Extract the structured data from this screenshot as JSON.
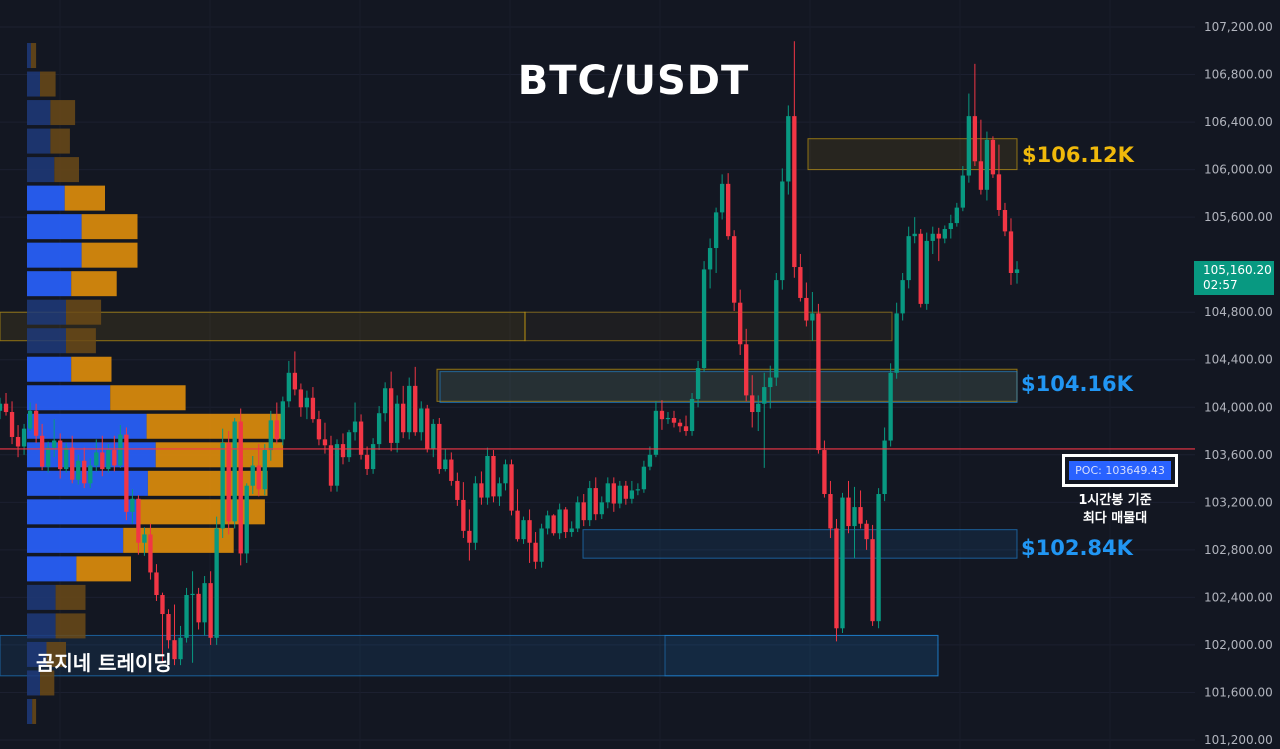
{
  "title": "BTC/USDT",
  "chart_data": {
    "type": "candlestick",
    "symbol": "BTC/USDT",
    "y_axis": {
      "min": 101200,
      "max": 107200,
      "ticks": [
        "107,200.00",
        "106,800.00",
        "106,400.00",
        "106,000.00",
        "105,600.00",
        "104,800.00",
        "104,400.00",
        "104,000.00",
        "103,600.00",
        "103,200.00",
        "102,800.00",
        "102,400.00",
        "102,000.00",
        "101,600.00",
        "101,200.00"
      ],
      "tick_values": [
        107200,
        106800,
        106400,
        106000,
        105600,
        104800,
        104400,
        104000,
        103600,
        103200,
        102800,
        102400,
        102000,
        101600,
        101200
      ]
    },
    "current_price": {
      "label": "105,160.20",
      "countdown": "02:57",
      "value": 105160.2,
      "color": "#089981"
    },
    "poc": {
      "label": "POC: 103649.43",
      "value": 103649.43,
      "line_color": "#f23645"
    },
    "poc_note": {
      "line1": "1시간봉 기준",
      "line2": "최다 매물대"
    },
    "levels": [
      {
        "label": "$106.12K",
        "value": 106120,
        "color": "#f0b90b"
      },
      {
        "label": "$104.16K",
        "value": 104160,
        "color": "#2196f3"
      },
      {
        "label": "$102.84K",
        "value": 102840,
        "color": "#2196f3"
      }
    ],
    "zones": [
      {
        "type": "supply",
        "from": 106000,
        "to": 106260,
        "color": "#f0b90b"
      },
      {
        "type": "supply",
        "from": 104560,
        "to": 104800,
        "color": "#f0b90b"
      },
      {
        "type": "supply",
        "from": 104050,
        "to": 104320,
        "color": "#f0b90b"
      },
      {
        "type": "demand",
        "from": 104040,
        "to": 104300,
        "color": "#2196f3"
      },
      {
        "type": "demand",
        "from": 102730,
        "to": 102970,
        "color": "#2196f3"
      },
      {
        "type": "demand",
        "from": 101740,
        "to": 102080,
        "color": "#2196f3"
      }
    ],
    "volume_profile": {
      "bins": [
        {
          "price": 106960,
          "buy": 3,
          "sell": 4
        },
        {
          "price": 106720,
          "buy": 10,
          "sell": 12
        },
        {
          "price": 106480,
          "buy": 18,
          "sell": 19
        },
        {
          "price": 106240,
          "buy": 18,
          "sell": 15
        },
        {
          "price": 106000,
          "buy": 21,
          "sell": 19
        },
        {
          "price": 105760,
          "buy": 29,
          "sell": 31
        },
        {
          "price": 105520,
          "buy": 42,
          "sell": 43
        },
        {
          "price": 105280,
          "buy": 42,
          "sell": 43
        },
        {
          "price": 105040,
          "buy": 34,
          "sell": 35
        },
        {
          "price": 104800,
          "buy": 30,
          "sell": 27
        },
        {
          "price": 104560,
          "buy": 30,
          "sell": 23
        },
        {
          "price": 104320,
          "buy": 34,
          "sell": 31
        },
        {
          "price": 104080,
          "buy": 64,
          "sell": 58
        },
        {
          "price": 103840,
          "buy": 92,
          "sell": 105
        },
        {
          "price": 103600,
          "buy": 99,
          "sell": 98
        },
        {
          "price": 103360,
          "buy": 93,
          "sell": 92
        },
        {
          "price": 103120,
          "buy": 86,
          "sell": 97
        },
        {
          "price": 102880,
          "buy": 74,
          "sell": 85
        },
        {
          "price": 102640,
          "buy": 38,
          "sell": 42
        },
        {
          "price": 102400,
          "buy": 22,
          "sell": 23
        },
        {
          "price": 102160,
          "buy": 22,
          "sell": 23
        },
        {
          "price": 101920,
          "buy": 15,
          "sell": 15
        },
        {
          "price": 101680,
          "buy": 10,
          "sell": 11
        },
        {
          "price": 101440,
          "buy": 4,
          "sell": 3
        }
      ]
    },
    "candles": [
      [
        103970,
        104080,
        103900,
        104030
      ],
      [
        104030,
        104120,
        103930,
        103960
      ],
      [
        103960,
        104050,
        103690,
        103750
      ],
      [
        103750,
        103850,
        103580,
        103670
      ],
      [
        103670,
        103860,
        103600,
        103820
      ],
      [
        103820,
        104040,
        103800,
        103970
      ],
      [
        103970,
        104030,
        103700,
        103760
      ],
      [
        103760,
        103860,
        103470,
        103500
      ],
      [
        103500,
        103710,
        103450,
        103660
      ],
      [
        103660,
        103900,
        103580,
        103720
      ],
      [
        103720,
        103780,
        103400,
        103480
      ],
      [
        103480,
        103700,
        103450,
        103660
      ],
      [
        103660,
        103760,
        103360,
        103390
      ],
      [
        103390,
        103600,
        103350,
        103550
      ],
      [
        103550,
        103660,
        103320,
        103360
      ],
      [
        103360,
        103570,
        103320,
        103510
      ],
      [
        103510,
        103730,
        103460,
        103620
      ],
      [
        103620,
        103760,
        103420,
        103480
      ],
      [
        103480,
        103690,
        103450,
        103640
      ],
      [
        103640,
        103760,
        103460,
        103510
      ],
      [
        103510,
        103850,
        103490,
        103770
      ],
      [
        103770,
        103830,
        103050,
        103120
      ],
      [
        103120,
        103310,
        103020,
        103230
      ],
      [
        103230,
        103260,
        102760,
        102860
      ],
      [
        102860,
        102990,
        102750,
        102930
      ],
      [
        102930,
        103020,
        102550,
        102610
      ],
      [
        102610,
        102680,
        102370,
        102420
      ],
      [
        102420,
        102440,
        101860,
        102260
      ],
      [
        102260,
        102300,
        101970,
        102040
      ],
      [
        102040,
        102340,
        101830,
        101880
      ],
      [
        101880,
        102160,
        101830,
        102060
      ],
      [
        102060,
        102480,
        102020,
        102420
      ],
      [
        102420,
        102620,
        101850,
        102430
      ],
      [
        102430,
        102480,
        102130,
        102190
      ],
      [
        102190,
        102580,
        102080,
        102520
      ],
      [
        102520,
        102620,
        102000,
        102060
      ],
      [
        102060,
        103080,
        102000,
        102980
      ],
      [
        102980,
        103820,
        102900,
        103700
      ],
      [
        103700,
        103800,
        102930,
        103040
      ],
      [
        103040,
        103910,
        102980,
        103880
      ],
      [
        103880,
        103990,
        102670,
        102770
      ],
      [
        102770,
        103360,
        102690,
        103340
      ],
      [
        103340,
        103590,
        103270,
        103510
      ],
      [
        103510,
        103690,
        103250,
        103310
      ],
      [
        103310,
        103690,
        103260,
        103640
      ],
      [
        103640,
        103970,
        103550,
        103890
      ],
      [
        103890,
        104040,
        103690,
        103730
      ],
      [
        103730,
        104090,
        103680,
        104050
      ],
      [
        104050,
        104390,
        104000,
        104290
      ],
      [
        104290,
        104470,
        104100,
        104150
      ],
      [
        104150,
        104200,
        103920,
        104000
      ],
      [
        104000,
        104140,
        103900,
        104080
      ],
      [
        104080,
        104170,
        103870,
        103900
      ],
      [
        103900,
        103970,
        103680,
        103730
      ],
      [
        103730,
        103870,
        103610,
        103680
      ],
      [
        103680,
        103760,
        103290,
        103340
      ],
      [
        103340,
        103730,
        103290,
        103690
      ],
      [
        103690,
        103780,
        103520,
        103580
      ],
      [
        103580,
        103810,
        103540,
        103790
      ],
      [
        103790,
        104040,
        103720,
        103880
      ],
      [
        103880,
        103940,
        103560,
        103600
      ],
      [
        103600,
        103670,
        103430,
        103480
      ],
      [
        103480,
        103740,
        103440,
        103690
      ],
      [
        103690,
        104010,
        103640,
        103950
      ],
      [
        103950,
        104210,
        103880,
        104160
      ],
      [
        104160,
        104300,
        103630,
        103700
      ],
      [
        103700,
        104100,
        103620,
        104030
      ],
      [
        104030,
        104180,
        103740,
        103790
      ],
      [
        103790,
        104250,
        103730,
        104180
      ],
      [
        104180,
        104340,
        103760,
        103790
      ],
      [
        103790,
        104050,
        103720,
        103990
      ],
      [
        103990,
        104020,
        103620,
        103650
      ],
      [
        103650,
        103900,
        103580,
        103860
      ],
      [
        103860,
        103910,
        103440,
        103480
      ],
      [
        103480,
        103650,
        103460,
        103560
      ],
      [
        103560,
        103620,
        103340,
        103380
      ],
      [
        103380,
        103450,
        103170,
        103220
      ],
      [
        103220,
        103370,
        102900,
        102960
      ],
      [
        102960,
        103140,
        102710,
        102860
      ],
      [
        102860,
        103420,
        102800,
        103360
      ],
      [
        103360,
        103460,
        103180,
        103240
      ],
      [
        103240,
        103660,
        103180,
        103590
      ],
      [
        103590,
        103640,
        103200,
        103250
      ],
      [
        103250,
        103410,
        103170,
        103360
      ],
      [
        103360,
        103560,
        103300,
        103520
      ],
      [
        103520,
        103560,
        103090,
        103130
      ],
      [
        103130,
        103310,
        102870,
        102890
      ],
      [
        102890,
        103080,
        102850,
        103050
      ],
      [
        103050,
        103140,
        102690,
        102860
      ],
      [
        102860,
        102950,
        102640,
        102700
      ],
      [
        102700,
        103020,
        102650,
        102980
      ],
      [
        102980,
        103130,
        102930,
        103090
      ],
      [
        103090,
        103100,
        102920,
        102940
      ],
      [
        102940,
        103190,
        102890,
        103140
      ],
      [
        103140,
        103160,
        102900,
        102950
      ],
      [
        102950,
        103040,
        102910,
        102980
      ],
      [
        102980,
        103250,
        102950,
        103200
      ],
      [
        103200,
        103270,
        103000,
        103050
      ],
      [
        103050,
        103380,
        103000,
        103320
      ],
      [
        103320,
        103410,
        103050,
        103100
      ],
      [
        103100,
        103250,
        103060,
        103200
      ],
      [
        103200,
        103410,
        103150,
        103360
      ],
      [
        103360,
        103410,
        103120,
        103190
      ],
      [
        103190,
        103380,
        103150,
        103340
      ],
      [
        103340,
        103380,
        103180,
        103230
      ],
      [
        103230,
        103380,
        103190,
        103300
      ],
      [
        103300,
        103360,
        103260,
        103310
      ],
      [
        103310,
        103550,
        103280,
        103500
      ],
      [
        103500,
        103670,
        103470,
        103600
      ],
      [
        103600,
        104050,
        103580,
        103970
      ],
      [
        103970,
        104060,
        103810,
        103900
      ],
      [
        103900,
        103960,
        103860,
        103910
      ],
      [
        103910,
        103970,
        103830,
        103870
      ],
      [
        103870,
        103900,
        103790,
        103840
      ],
      [
        103840,
        103930,
        103760,
        103800
      ],
      [
        103800,
        104120,
        103760,
        104070
      ],
      [
        104070,
        104390,
        104000,
        104330
      ],
      [
        104330,
        105230,
        104300,
        105160
      ],
      [
        105160,
        105420,
        105000,
        105340
      ],
      [
        105340,
        105680,
        105130,
        105640
      ],
      [
        105640,
        105960,
        105580,
        105880
      ],
      [
        105880,
        105970,
        105410,
        105440
      ],
      [
        105440,
        105490,
        104810,
        104880
      ],
      [
        104880,
        104990,
        104440,
        104530
      ],
      [
        104530,
        104660,
        104050,
        104100
      ],
      [
        104100,
        104270,
        103830,
        103960
      ],
      [
        103960,
        104100,
        103800,
        104030
      ],
      [
        104030,
        104290,
        103490,
        104170
      ],
      [
        104170,
        104350,
        103990,
        104250
      ],
      [
        104250,
        105130,
        104180,
        105070
      ],
      [
        105070,
        106010,
        104990,
        105900
      ],
      [
        105900,
        106540,
        105790,
        106450
      ],
      [
        106450,
        107080,
        105090,
        105180
      ],
      [
        105180,
        105290,
        104890,
        104920
      ],
      [
        104920,
        105050,
        104680,
        104730
      ],
      [
        104730,
        104970,
        104560,
        104790
      ],
      [
        104790,
        104870,
        103610,
        103640
      ],
      [
        103640,
        103720,
        103240,
        103270
      ],
      [
        103270,
        103380,
        102900,
        102980
      ],
      [
        102980,
        103060,
        102030,
        102140
      ],
      [
        102140,
        103280,
        102100,
        103240
      ],
      [
        103240,
        103380,
        102940,
        103000
      ],
      [
        103000,
        103330,
        102730,
        103160
      ],
      [
        103160,
        103300,
        102980,
        103020
      ],
      [
        103020,
        103050,
        102800,
        102890
      ],
      [
        102890,
        103010,
        102160,
        102200
      ],
      [
        102200,
        103320,
        102140,
        103270
      ],
      [
        103270,
        103830,
        103210,
        103720
      ],
      [
        103720,
        104370,
        103670,
        104290
      ],
      [
        104290,
        104880,
        104240,
        104790
      ],
      [
        104790,
        105130,
        104730,
        105070
      ],
      [
        105070,
        105520,
        105000,
        105440
      ],
      [
        105440,
        105600,
        105380,
        105460
      ],
      [
        105460,
        105500,
        104840,
        104870
      ],
      [
        104870,
        105470,
        104820,
        105400
      ],
      [
        105400,
        105520,
        105290,
        105460
      ],
      [
        105460,
        105510,
        105230,
        105420
      ],
      [
        105420,
        105530,
        105380,
        105500
      ],
      [
        105500,
        105620,
        105420,
        105550
      ],
      [
        105550,
        105720,
        105520,
        105680
      ],
      [
        105680,
        106030,
        105650,
        105950
      ],
      [
        105950,
        106640,
        105890,
        106450
      ],
      [
        106450,
        106890,
        106030,
        106070
      ],
      [
        106070,
        106420,
        105790,
        105830
      ],
      [
        105830,
        106320,
        105740,
        106250
      ],
      [
        106250,
        106280,
        105930,
        105960
      ],
      [
        105960,
        106210,
        105610,
        105660
      ],
      [
        105660,
        105720,
        105440,
        105480
      ],
      [
        105480,
        105590,
        105030,
        105130
      ],
      [
        105130,
        105230,
        105040,
        105160
      ]
    ],
    "candle_colors": {
      "up": "#089981",
      "down": "#f23645"
    }
  },
  "brand": "곰지네 트레이딩"
}
